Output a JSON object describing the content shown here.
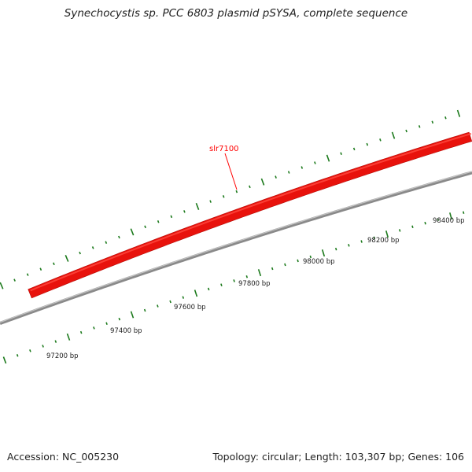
{
  "title": "Synechocystis sp. PCC 6803 plasmid pSYSA, complete sequence",
  "footer": {
    "accession": "Accession: NC_005230",
    "summary": "Topology: circular; Length: 103,307 bp; Genes: 106"
  },
  "colors": {
    "gene": "#e8120c",
    "gene_highlight": "#ff4a40",
    "backbone": "#8a8a8a",
    "tick": "#1c7a1c",
    "label_line": "#ff0000",
    "text": "#222222"
  },
  "gene": {
    "name": "slr7100",
    "strand": "forward"
  },
  "scale": {
    "unit": "bp",
    "labels": [
      "97200 bp",
      "97400 bp",
      "97600 bp",
      "97800 bp",
      "98000 bp",
      "98200 bp",
      "98400 bp"
    ]
  }
}
